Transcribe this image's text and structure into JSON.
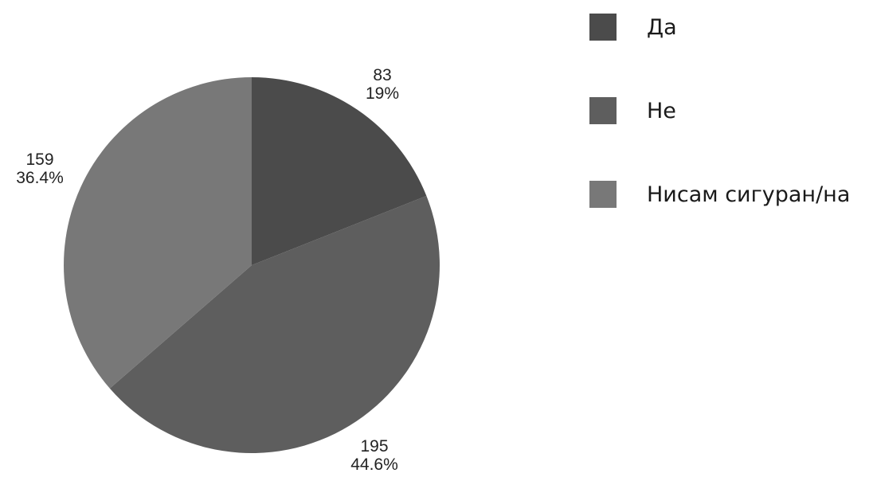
{
  "chart_data": {
    "type": "pie",
    "title": "",
    "legend_position": "right",
    "series": [
      {
        "name": "",
        "slices": [
          {
            "label": "Да",
            "value": 83,
            "percent_label": "19%",
            "color": "#4b4b4b"
          },
          {
            "label": "Не",
            "value": 195,
            "percent_label": "44.6%",
            "color": "#5e5e5e"
          },
          {
            "label": "Нисам сигуран/на",
            "value": 159,
            "percent_label": "36.4%",
            "color": "#787878"
          }
        ]
      }
    ]
  }
}
